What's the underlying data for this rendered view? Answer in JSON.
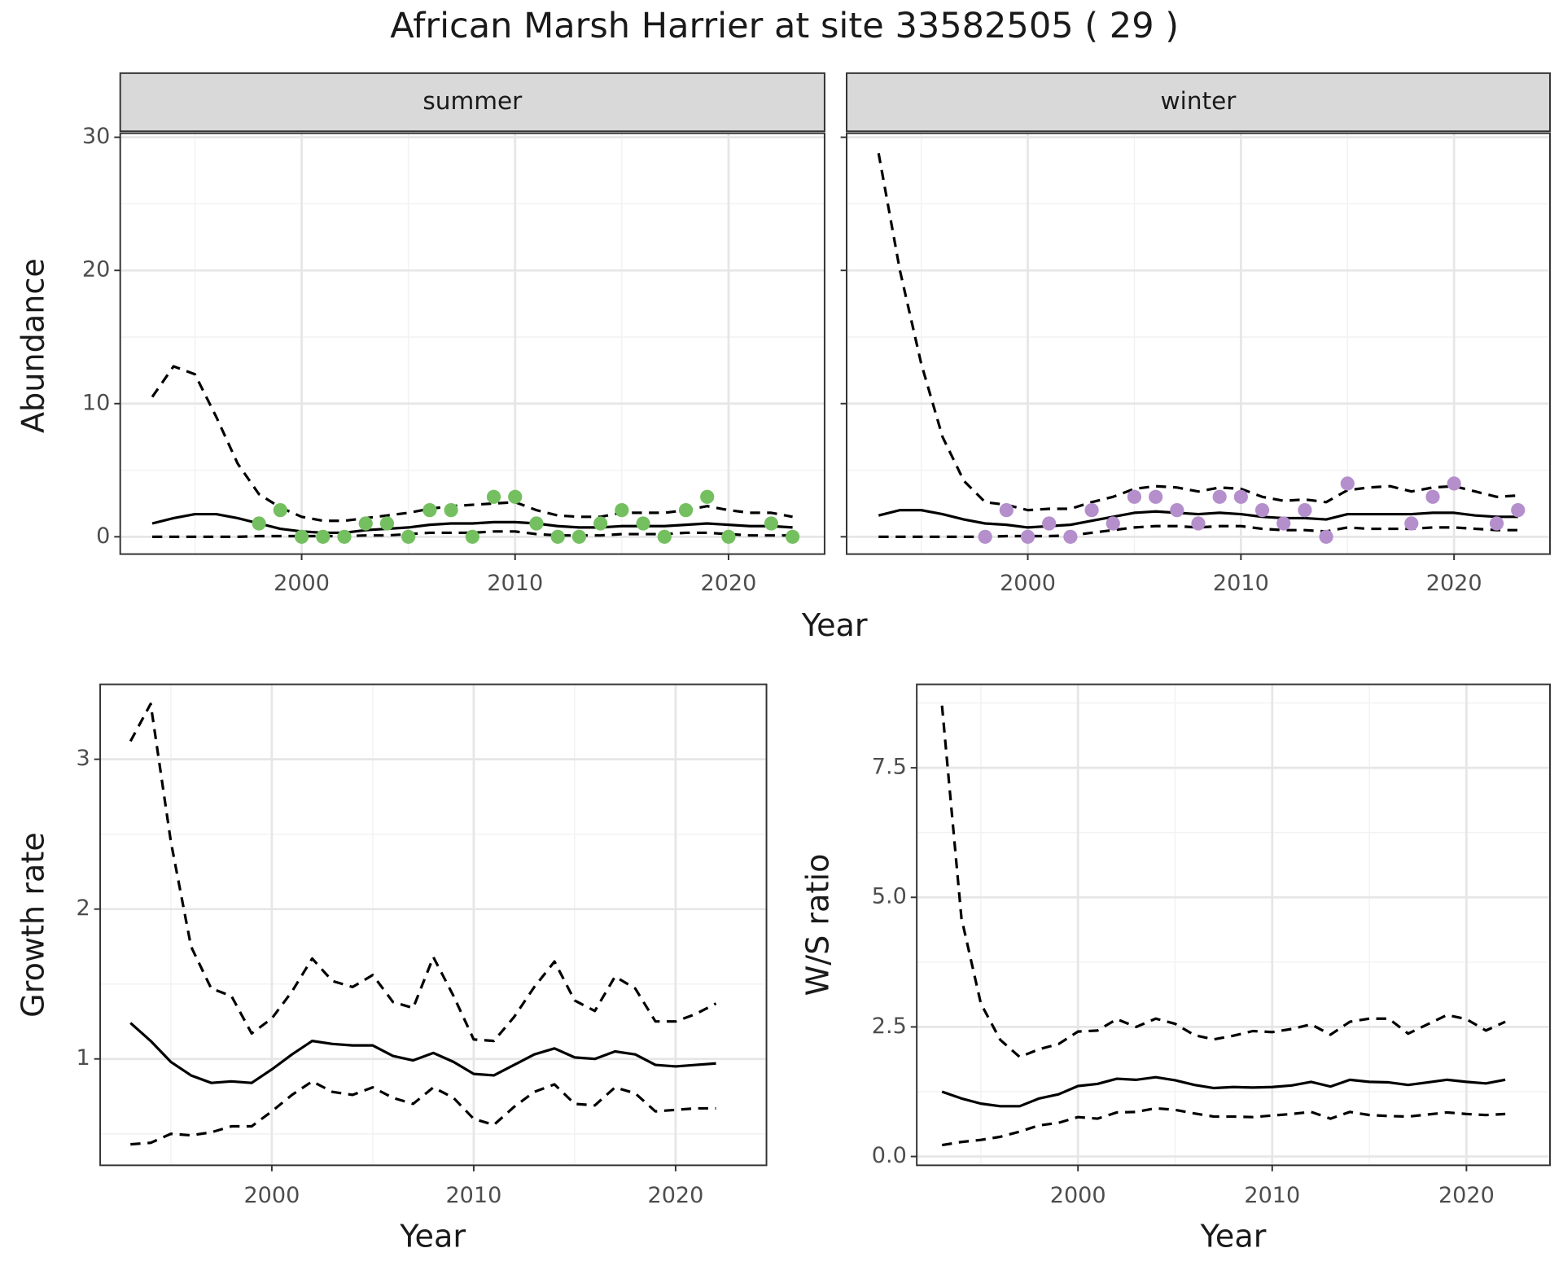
{
  "title": "African Marsh Harrier at site 33582505 ( 29 )",
  "chart_data": [
    {
      "type": "line",
      "facet": "summer",
      "ylabel": "Abundance",
      "x": [
        1993,
        1994,
        1995,
        1996,
        1997,
        1998,
        1999,
        2000,
        2001,
        2002,
        2003,
        2004,
        2005,
        2006,
        2007,
        2008,
        2009,
        2010,
        2011,
        2012,
        2013,
        2014,
        2015,
        2016,
        2017,
        2018,
        2019,
        2020,
        2021,
        2022,
        2023
      ],
      "xlim": [
        1991.5,
        2024.5
      ],
      "ylim": [
        -1.3,
        30.3
      ],
      "xticks": [
        2000,
        2010,
        2020
      ],
      "yticks": [
        0,
        10,
        20,
        30
      ],
      "grid": true,
      "ytick_labels": true,
      "series": [
        {
          "type": "scatter",
          "color": "#74c060",
          "x": [
            1998,
            1999,
            2000,
            2001,
            2002,
            2003,
            2004,
            2005,
            2006,
            2007,
            2008,
            2009,
            2010,
            2011,
            2012,
            2013,
            2014,
            2015,
            2016,
            2017,
            2018,
            2019,
            2020,
            2022,
            2023
          ],
          "values": [
            1,
            2,
            0,
            0,
            0,
            1,
            1,
            0,
            2,
            2,
            0,
            3,
            3,
            1,
            0,
            0,
            1,
            2,
            1,
            0,
            2,
            3,
            0,
            1,
            0
          ]
        },
        {
          "type": "line",
          "color": "#000000",
          "dash": false,
          "values": [
            1.0,
            1.4,
            1.7,
            1.7,
            1.4,
            1.0,
            0.6,
            0.4,
            0.3,
            0.3,
            0.5,
            0.6,
            0.7,
            0.9,
            1.0,
            1.0,
            1.1,
            1.1,
            1.0,
            0.8,
            0.7,
            0.7,
            0.8,
            0.8,
            0.8,
            0.9,
            1.0,
            0.9,
            0.8,
            0.8,
            0.7
          ]
        },
        {
          "type": "line",
          "color": "#000000",
          "dash": true,
          "values": [
            10.5,
            12.8,
            12.2,
            9.0,
            5.5,
            3.2,
            2.2,
            1.5,
            1.2,
            1.2,
            1.4,
            1.6,
            1.8,
            2.1,
            2.3,
            2.4,
            2.5,
            2.6,
            2.0,
            1.6,
            1.5,
            1.5,
            1.8,
            1.8,
            1.8,
            2.0,
            2.3,
            2.0,
            1.8,
            1.8,
            1.5
          ]
        },
        {
          "type": "line",
          "color": "#000000",
          "dash": true,
          "values": [
            0,
            0,
            0,
            0,
            0,
            0.05,
            0.05,
            0.05,
            0.05,
            0.05,
            0.1,
            0.1,
            0.2,
            0.3,
            0.3,
            0.3,
            0.4,
            0.4,
            0.2,
            0.1,
            0.1,
            0.1,
            0.2,
            0.2,
            0.2,
            0.3,
            0.3,
            0.2,
            0.1,
            0.1,
            0.1
          ]
        }
      ]
    },
    {
      "type": "line",
      "facet": "winter",
      "xlabel": "Year",
      "x": [
        1993,
        1994,
        1995,
        1996,
        1997,
        1998,
        1999,
        2000,
        2001,
        2002,
        2003,
        2004,
        2005,
        2006,
        2007,
        2008,
        2009,
        2010,
        2011,
        2012,
        2013,
        2014,
        2015,
        2016,
        2017,
        2018,
        2019,
        2020,
        2021,
        2022,
        2023
      ],
      "xlim": [
        1991.5,
        2024.5
      ],
      "ylim": [
        -1.3,
        30.3
      ],
      "xticks": [
        2000,
        2010,
        2020
      ],
      "yticks": [
        0,
        10,
        20,
        30
      ],
      "grid": true,
      "ytick_labels": false,
      "series": [
        {
          "type": "scatter",
          "color": "#b48fcc",
          "x": [
            1998,
            1999,
            2000,
            2001,
            2002,
            2003,
            2004,
            2005,
            2006,
            2007,
            2008,
            2009,
            2010,
            2011,
            2012,
            2013,
            2014,
            2015,
            2018,
            2019,
            2020,
            2022,
            2023
          ],
          "values": [
            0,
            2,
            0,
            1,
            0,
            2,
            1,
            3,
            3,
            2,
            1,
            3,
            3,
            2,
            1,
            2,
            0,
            4,
            1,
            3,
            4,
            1,
            2
          ]
        },
        {
          "type": "line",
          "color": "#000000",
          "dash": false,
          "values": [
            1.6,
            2.0,
            2.0,
            1.7,
            1.3,
            1.0,
            0.9,
            0.7,
            0.8,
            0.9,
            1.2,
            1.5,
            1.8,
            1.9,
            1.8,
            1.7,
            1.8,
            1.7,
            1.5,
            1.4,
            1.4,
            1.3,
            1.7,
            1.7,
            1.7,
            1.7,
            1.8,
            1.8,
            1.6,
            1.5,
            1.5
          ]
        },
        {
          "type": "line",
          "color": "#000000",
          "dash": true,
          "values": [
            28.8,
            20.0,
            13.0,
            7.5,
            4.2,
            2.6,
            2.4,
            2.0,
            2.1,
            2.1,
            2.6,
            3.0,
            3.6,
            3.8,
            3.7,
            3.4,
            3.7,
            3.6,
            3.0,
            2.7,
            2.8,
            2.6,
            3.5,
            3.7,
            3.8,
            3.4,
            3.7,
            3.8,
            3.4,
            3.0,
            3.1
          ]
        },
        {
          "type": "line",
          "color": "#000000",
          "dash": true,
          "values": [
            0,
            0,
            0,
            0,
            0,
            0,
            0.05,
            0.05,
            0.05,
            0.1,
            0.3,
            0.5,
            0.7,
            0.8,
            0.8,
            0.7,
            0.8,
            0.8,
            0.6,
            0.5,
            0.5,
            0.4,
            0.7,
            0.6,
            0.6,
            0.6,
            0.7,
            0.7,
            0.6,
            0.5,
            0.5
          ]
        }
      ]
    },
    {
      "type": "line",
      "ylabel": "Growth rate",
      "xlabel": "Year",
      "x": [
        1993,
        1994,
        1995,
        1996,
        1997,
        1998,
        1999,
        2000,
        2001,
        2002,
        2003,
        2004,
        2005,
        2006,
        2007,
        2008,
        2009,
        2010,
        2011,
        2012,
        2013,
        2014,
        2015,
        2016,
        2017,
        2018,
        2019,
        2020,
        2021,
        2022
      ],
      "xlim": [
        1991.5,
        2024.5
      ],
      "ylim": [
        0.29,
        3.5
      ],
      "xticks": [
        2000,
        2010,
        2020
      ],
      "yticks": [
        1,
        2,
        3
      ],
      "grid": true,
      "ytick_labels": true,
      "series": [
        {
          "type": "line",
          "color": "#000000",
          "dash": false,
          "values": [
            1.24,
            1.12,
            0.98,
            0.89,
            0.84,
            0.85,
            0.84,
            0.93,
            1.03,
            1.12,
            1.1,
            1.09,
            1.09,
            1.02,
            0.99,
            1.04,
            0.98,
            0.9,
            0.89,
            0.96,
            1.03,
            1.07,
            1.01,
            1.0,
            1.05,
            1.03,
            0.96,
            0.95,
            0.96,
            0.97
          ]
        },
        {
          "type": "line",
          "color": "#000000",
          "dash": true,
          "values": [
            3.12,
            3.37,
            2.45,
            1.75,
            1.47,
            1.42,
            1.17,
            1.27,
            1.45,
            1.67,
            1.52,
            1.48,
            1.56,
            1.38,
            1.34,
            1.68,
            1.42,
            1.13,
            1.12,
            1.28,
            1.48,
            1.65,
            1.39,
            1.32,
            1.55,
            1.47,
            1.25,
            1.25,
            1.3,
            1.37
          ]
        },
        {
          "type": "line",
          "color": "#000000",
          "dash": true,
          "values": [
            0.43,
            0.44,
            0.5,
            0.49,
            0.51,
            0.55,
            0.55,
            0.65,
            0.76,
            0.85,
            0.78,
            0.76,
            0.81,
            0.74,
            0.7,
            0.81,
            0.74,
            0.6,
            0.56,
            0.68,
            0.78,
            0.83,
            0.7,
            0.69,
            0.81,
            0.77,
            0.65,
            0.66,
            0.67,
            0.67
          ]
        }
      ]
    },
    {
      "type": "line",
      "ylabel": "W/S ratio",
      "xlabel": "Year",
      "x": [
        1993,
        1994,
        1995,
        1996,
        1997,
        1998,
        1999,
        2000,
        2001,
        2002,
        2003,
        2004,
        2005,
        2006,
        2007,
        2008,
        2009,
        2010,
        2011,
        2012,
        2013,
        2014,
        2015,
        2016,
        2017,
        2018,
        2019,
        2020,
        2021,
        2022
      ],
      "xlim": [
        1991.7,
        2024.3
      ],
      "ylim": [
        -0.17,
        9.11
      ],
      "xticks": [
        2000,
        2010,
        2020
      ],
      "yticks": [
        {
          "value": 0,
          "label": "0.0"
        },
        2.5,
        {
          "value": 5,
          "label": "5.0"
        },
        7.5
      ],
      "grid": true,
      "ytick_labels": true,
      "series": [
        {
          "type": "line",
          "color": "#000000",
          "dash": false,
          "values": [
            1.25,
            1.12,
            1.02,
            0.97,
            0.97,
            1.12,
            1.2,
            1.36,
            1.4,
            1.5,
            1.48,
            1.53,
            1.47,
            1.38,
            1.32,
            1.34,
            1.33,
            1.34,
            1.37,
            1.44,
            1.35,
            1.48,
            1.44,
            1.43,
            1.38,
            1.43,
            1.48,
            1.44,
            1.41,
            1.48
          ]
        },
        {
          "type": "line",
          "color": "#000000",
          "dash": true,
          "values": [
            8.7,
            4.6,
            2.95,
            2.25,
            1.92,
            2.07,
            2.17,
            2.41,
            2.43,
            2.65,
            2.5,
            2.66,
            2.56,
            2.34,
            2.26,
            2.33,
            2.42,
            2.4,
            2.46,
            2.55,
            2.35,
            2.6,
            2.66,
            2.66,
            2.37,
            2.55,
            2.73,
            2.65,
            2.43,
            2.6
          ]
        },
        {
          "type": "line",
          "color": "#000000",
          "dash": true,
          "values": [
            0.22,
            0.28,
            0.32,
            0.38,
            0.48,
            0.6,
            0.65,
            0.76,
            0.73,
            0.85,
            0.86,
            0.93,
            0.9,
            0.83,
            0.77,
            0.77,
            0.76,
            0.79,
            0.82,
            0.86,
            0.73,
            0.86,
            0.8,
            0.78,
            0.77,
            0.81,
            0.85,
            0.82,
            0.8,
            0.82
          ]
        }
      ]
    }
  ]
}
